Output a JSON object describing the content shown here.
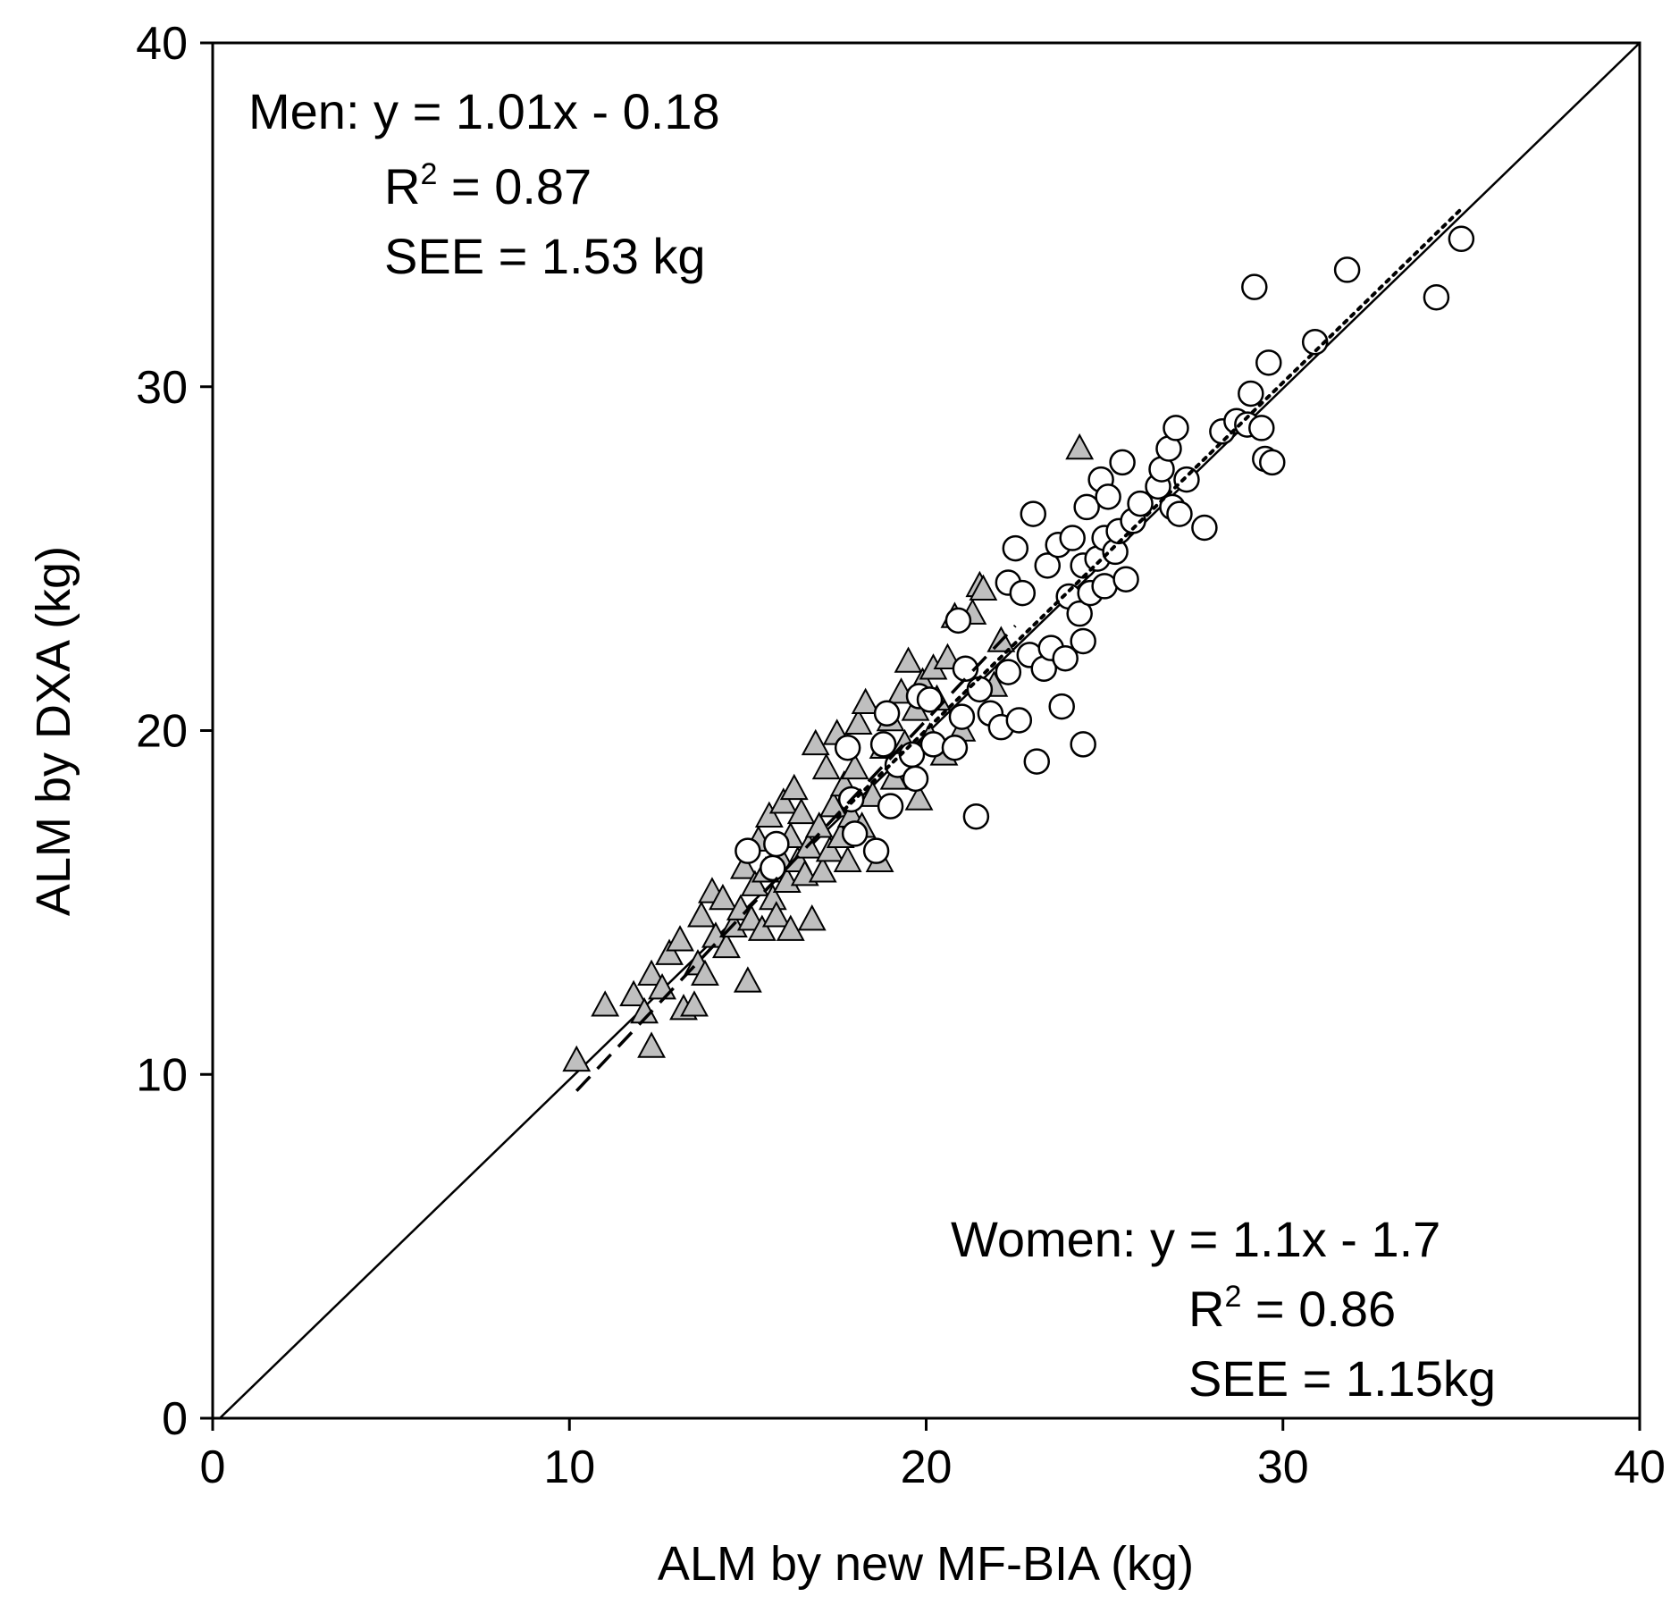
{
  "chart_data": {
    "type": "scatter",
    "title": "",
    "xlabel": "ALM by new MF-BIA (kg)",
    "ylabel": "ALM by DXA (kg)",
    "xlim": [
      0,
      40
    ],
    "ylim": [
      0,
      40
    ],
    "xticks": [
      "0",
      "10",
      "20",
      "30",
      "40"
    ],
    "yticks": [
      "0",
      "10",
      "20",
      "30",
      "40"
    ],
    "grid": false,
    "identity_line": {
      "from": [
        0.2,
        0
      ],
      "to": [
        40,
        40
      ]
    },
    "men_annotation": {
      "equation": "Men: y = 1.01x - 0.18",
      "r2_label": "R",
      "r2_sup": "2",
      "r2_value": " = 0.87",
      "see": "SEE = 1.53 kg"
    },
    "women_annotation": {
      "equation": "Women: y = 1.1x - 1.7",
      "r2_label": "R",
      "r2_sup": "2",
      "r2_value": " = 0.86",
      "see": "SEE = 1.15kg"
    },
    "series": [
      {
        "name": "Women",
        "marker": "triangle",
        "fill": "#bfbfbf",
        "regression": {
          "slope": 1.1,
          "intercept": -1.7,
          "x_range": [
            10.2,
            22.5
          ],
          "style": "dashed"
        },
        "points": [
          [
            10.2,
            10.4
          ],
          [
            11.0,
            12.0
          ],
          [
            11.8,
            12.3
          ],
          [
            12.1,
            11.8
          ],
          [
            12.3,
            12.9
          ],
          [
            12.3,
            10.8
          ],
          [
            12.6,
            12.5
          ],
          [
            12.8,
            13.5
          ],
          [
            13.1,
            13.9
          ],
          [
            13.2,
            11.9
          ],
          [
            13.5,
            12.0
          ],
          [
            13.6,
            13.2
          ],
          [
            13.7,
            14.6
          ],
          [
            13.8,
            12.9
          ],
          [
            14.0,
            15.3
          ],
          [
            14.1,
            14.0
          ],
          [
            14.3,
            15.1
          ],
          [
            14.4,
            13.7
          ],
          [
            14.6,
            14.3
          ],
          [
            14.8,
            14.8
          ],
          [
            14.9,
            16.0
          ],
          [
            15.0,
            12.7
          ],
          [
            15.1,
            14.5
          ],
          [
            15.2,
            15.5
          ],
          [
            15.3,
            16.8
          ],
          [
            15.4,
            14.2
          ],
          [
            15.5,
            15.9
          ],
          [
            15.6,
            17.5
          ],
          [
            15.7,
            15.1
          ],
          [
            15.8,
            14.6
          ],
          [
            15.9,
            16.3
          ],
          [
            16.0,
            17.9
          ],
          [
            16.1,
            15.6
          ],
          [
            16.2,
            16.9
          ],
          [
            16.2,
            14.2
          ],
          [
            16.3,
            18.3
          ],
          [
            16.4,
            16.2
          ],
          [
            16.5,
            17.6
          ],
          [
            16.6,
            15.8
          ],
          [
            16.7,
            16.6
          ],
          [
            16.8,
            14.5
          ],
          [
            16.9,
            19.6
          ],
          [
            17.0,
            17.2
          ],
          [
            17.1,
            15.9
          ],
          [
            17.2,
            18.9
          ],
          [
            17.3,
            16.5
          ],
          [
            17.4,
            17.8
          ],
          [
            17.5,
            19.9
          ],
          [
            17.6,
            16.9
          ],
          [
            17.7,
            18.4
          ],
          [
            17.8,
            16.2
          ],
          [
            17.9,
            17.5
          ],
          [
            18.0,
            18.9
          ],
          [
            18.1,
            20.2
          ],
          [
            18.2,
            17.2
          ],
          [
            18.3,
            20.8
          ],
          [
            18.5,
            18.1
          ],
          [
            18.7,
            16.2
          ],
          [
            18.8,
            19.5
          ],
          [
            19.0,
            20.3
          ],
          [
            19.1,
            18.6
          ],
          [
            19.3,
            21.1
          ],
          [
            19.4,
            19.6
          ],
          [
            19.5,
            22.0
          ],
          [
            19.7,
            20.6
          ],
          [
            19.8,
            18.0
          ],
          [
            19.9,
            21.4
          ],
          [
            20.1,
            19.8
          ],
          [
            20.2,
            21.8
          ],
          [
            20.3,
            20.9
          ],
          [
            20.5,
            19.3
          ],
          [
            20.6,
            22.1
          ],
          [
            20.8,
            23.3
          ],
          [
            21.0,
            20.0
          ],
          [
            21.3,
            23.4
          ],
          [
            21.5,
            24.2
          ],
          [
            21.6,
            24.1
          ],
          [
            21.9,
            21.3
          ],
          [
            24.3,
            28.2
          ],
          [
            22.1,
            22.6
          ]
        ]
      },
      {
        "name": "Men",
        "marker": "circle",
        "fill": "#ffffff",
        "regression": {
          "slope": 1.01,
          "intercept": -0.18,
          "x_range": [
            17.5,
            35.0
          ],
          "style": "dotted"
        },
        "points": [
          [
            15.0,
            16.5
          ],
          [
            15.7,
            16.0
          ],
          [
            15.8,
            16.7
          ],
          [
            17.8,
            19.5
          ],
          [
            17.9,
            18.0
          ],
          [
            18.0,
            17.0
          ],
          [
            18.6,
            16.5
          ],
          [
            18.8,
            19.6
          ],
          [
            18.9,
            20.5
          ],
          [
            19.0,
            17.8
          ],
          [
            19.2,
            19.0
          ],
          [
            19.6,
            19.3
          ],
          [
            19.7,
            18.6
          ],
          [
            19.8,
            21.0
          ],
          [
            20.1,
            20.9
          ],
          [
            20.2,
            19.6
          ],
          [
            20.8,
            19.5
          ],
          [
            20.9,
            23.2
          ],
          [
            21.0,
            20.4
          ],
          [
            21.1,
            21.8
          ],
          [
            21.4,
            17.5
          ],
          [
            21.5,
            21.2
          ],
          [
            21.8,
            20.5
          ],
          [
            22.1,
            20.1
          ],
          [
            22.3,
            21.7
          ],
          [
            22.3,
            24.3
          ],
          [
            22.5,
            25.3
          ],
          [
            22.6,
            20.3
          ],
          [
            22.7,
            24.0
          ],
          [
            22.9,
            22.2
          ],
          [
            23.0,
            26.3
          ],
          [
            23.1,
            19.1
          ],
          [
            23.3,
            21.8
          ],
          [
            23.4,
            24.8
          ],
          [
            23.5,
            22.4
          ],
          [
            23.7,
            25.4
          ],
          [
            23.8,
            20.7
          ],
          [
            23.9,
            22.1
          ],
          [
            24.0,
            23.9
          ],
          [
            24.1,
            25.6
          ],
          [
            24.3,
            23.4
          ],
          [
            24.4,
            24.8
          ],
          [
            24.4,
            19.6
          ],
          [
            24.4,
            22.6
          ],
          [
            24.5,
            26.5
          ],
          [
            24.6,
            24.0
          ],
          [
            24.8,
            25.0
          ],
          [
            24.9,
            27.3
          ],
          [
            25.0,
            25.6
          ],
          [
            25.0,
            24.2
          ],
          [
            25.1,
            26.8
          ],
          [
            25.3,
            25.2
          ],
          [
            25.4,
            25.8
          ],
          [
            25.5,
            27.8
          ],
          [
            25.6,
            24.4
          ],
          [
            25.8,
            26.1
          ],
          [
            26.0,
            26.6
          ],
          [
            26.5,
            27.1
          ],
          [
            26.6,
            27.6
          ],
          [
            26.8,
            28.2
          ],
          [
            26.9,
            26.5
          ],
          [
            27.0,
            28.8
          ],
          [
            27.1,
            26.3
          ],
          [
            27.3,
            27.3
          ],
          [
            27.8,
            25.9
          ],
          [
            28.3,
            28.7
          ],
          [
            28.7,
            29.0
          ],
          [
            29.0,
            28.9
          ],
          [
            29.1,
            29.8
          ],
          [
            29.2,
            32.9
          ],
          [
            29.4,
            28.8
          ],
          [
            29.5,
            27.9
          ],
          [
            29.6,
            30.7
          ],
          [
            29.7,
            27.8
          ],
          [
            30.9,
            31.3
          ],
          [
            31.8,
            33.4
          ],
          [
            34.3,
            32.6
          ],
          [
            35.0,
            34.3
          ]
        ]
      }
    ]
  }
}
